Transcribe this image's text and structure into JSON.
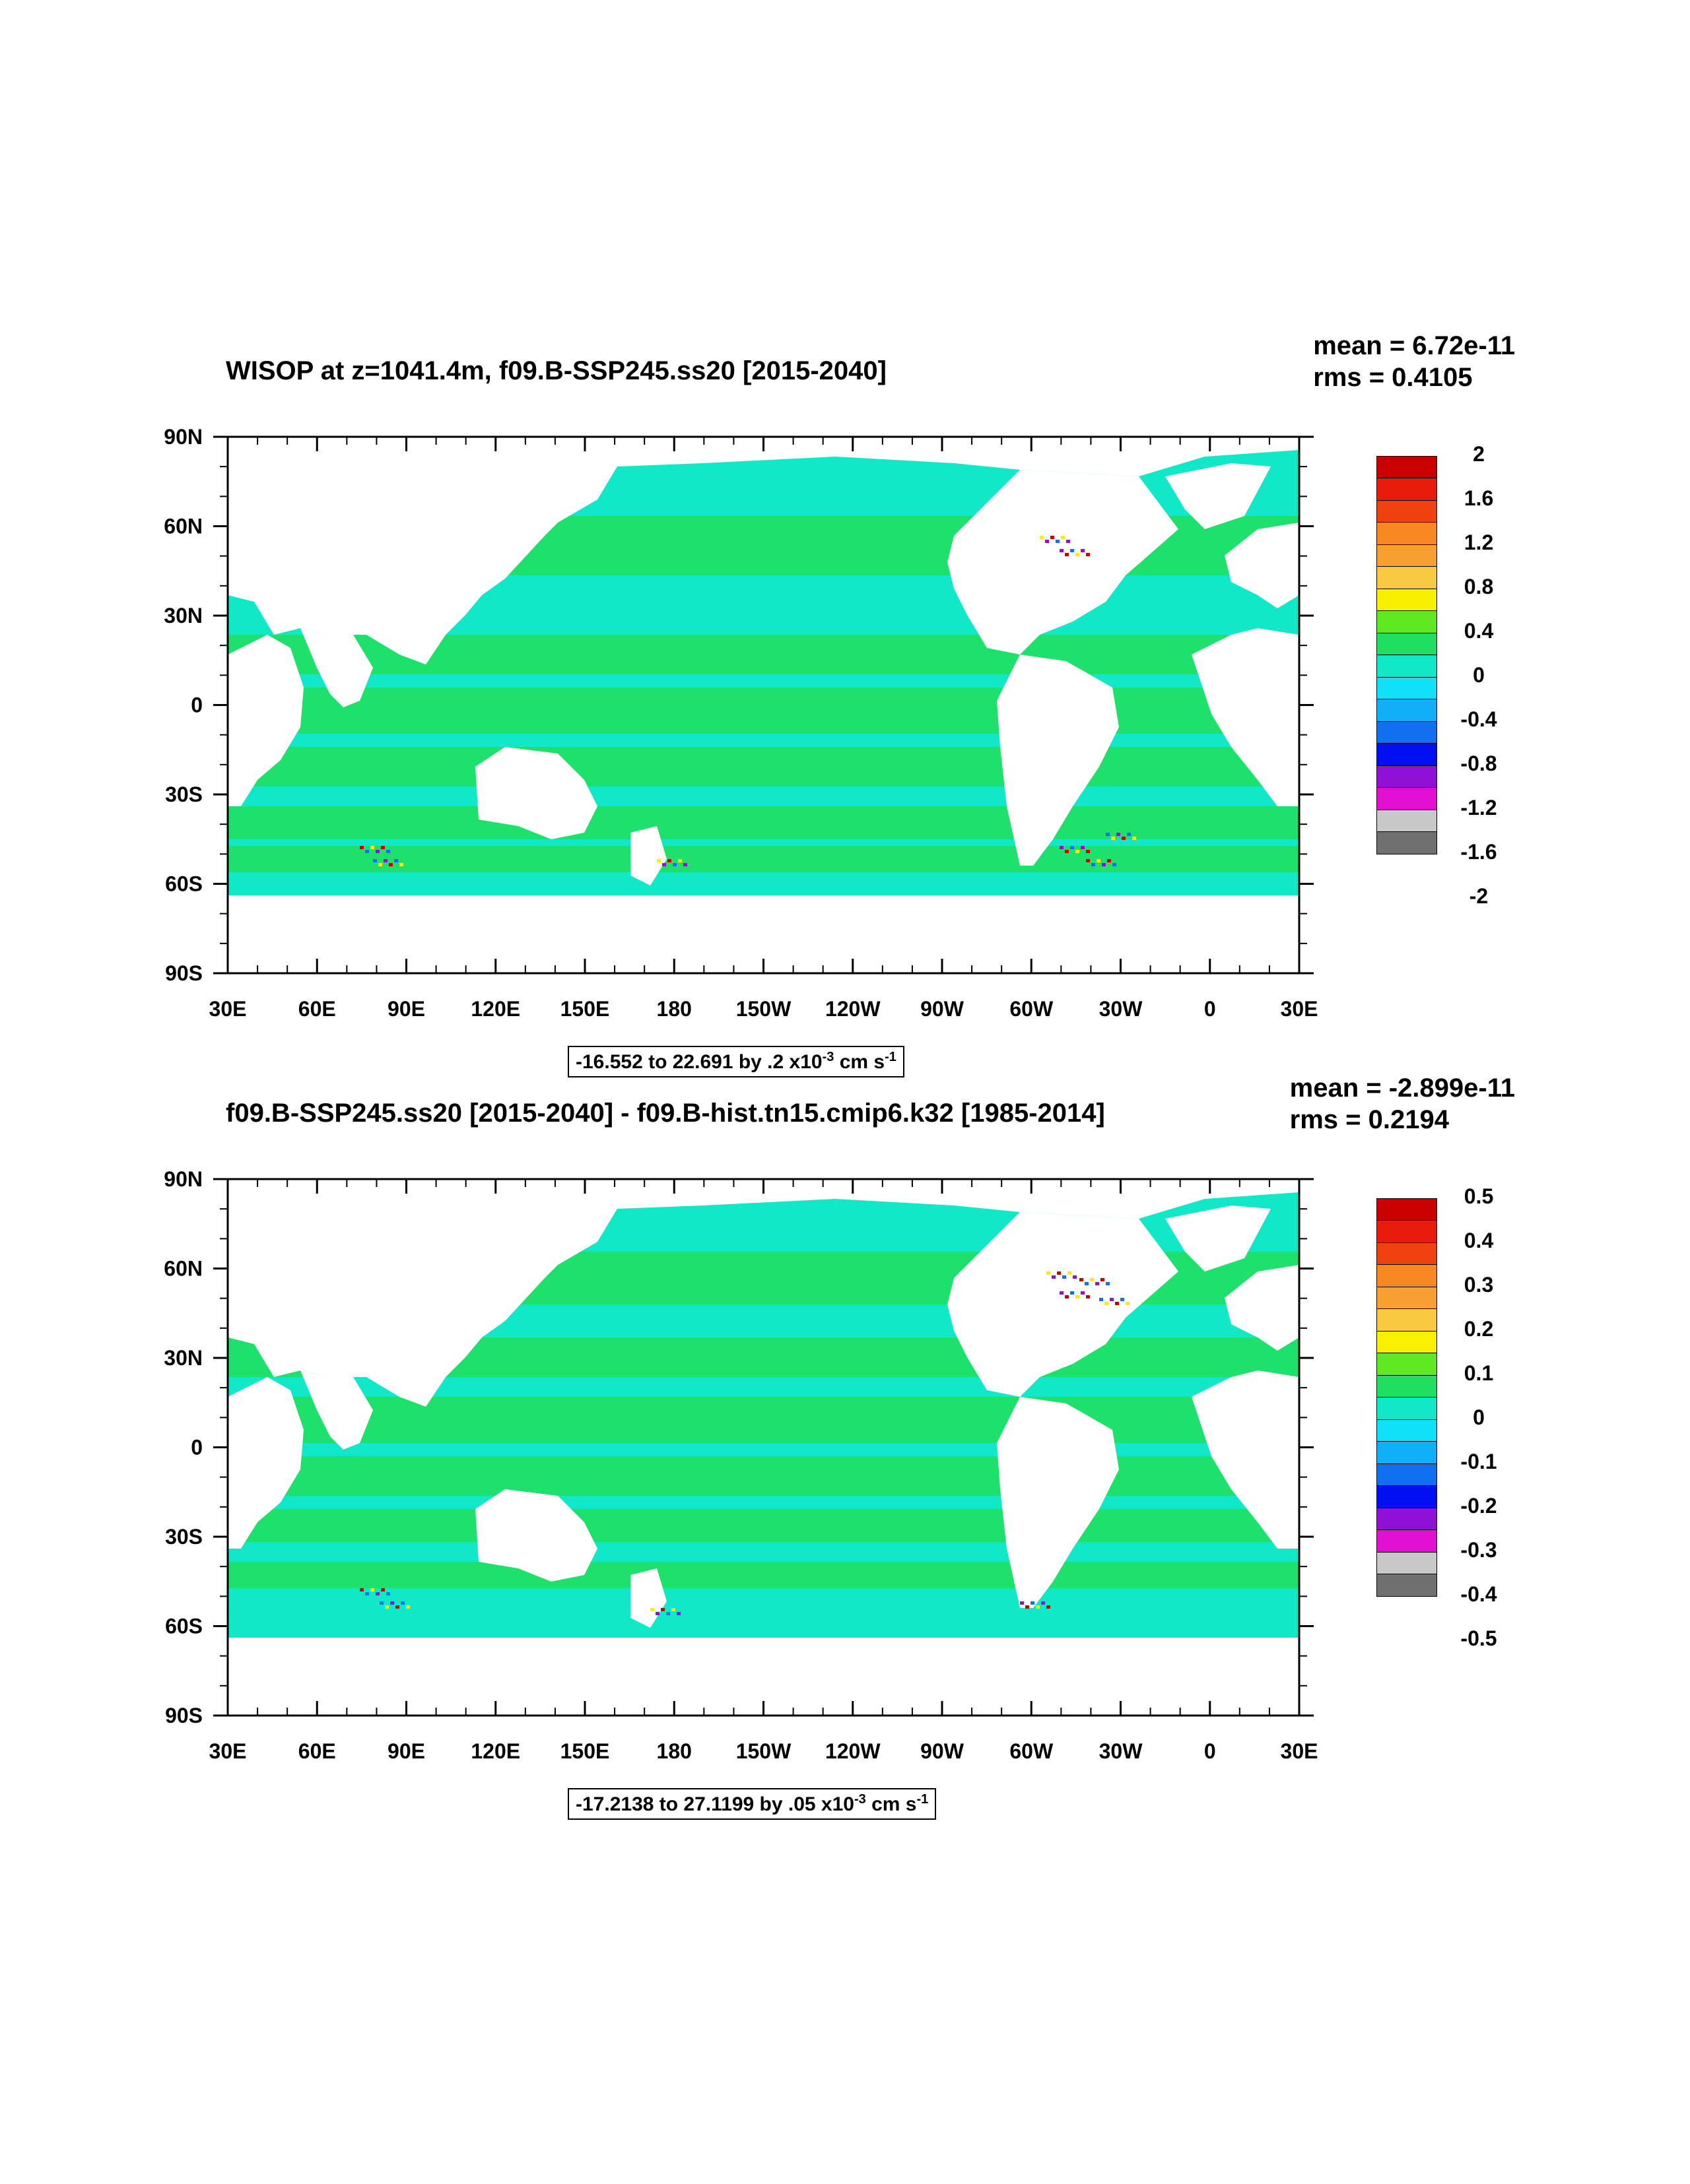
{
  "panels": [
    {
      "id": "panel-1",
      "title": "WISOP at z=1041.4m, f09.B-SSP245.ss20 [2015-2040]",
      "stats": {
        "mean": "mean = 6.72e-11",
        "rms": "rms = 0.4105"
      },
      "range_text": "-16.552 to 22.691 by .2 x10",
      "range_exp": "-3",
      "range_units": " cm s",
      "range_units_exp": "-1",
      "colorbar_labels": [
        "2",
        "1.6",
        "1.2",
        "0.8",
        "0.4",
        "0",
        "-0.4",
        "-0.8",
        "-1.2",
        "-1.6",
        "-2"
      ]
    },
    {
      "id": "panel-2",
      "title": "f09.B-SSP245.ss20 [2015-2040] - f09.B-hist.tn15.cmip6.k32 [1985-2014]",
      "stats": {
        "mean": "mean = -2.899e-11",
        "rms": "rms = 0.2194"
      },
      "range_text": "-17.2138 to 27.1199 by .05 x10",
      "range_exp": "-3",
      "range_units": " cm s",
      "range_units_exp": "-1",
      "colorbar_labels": [
        "0.5",
        "0.4",
        "0.3",
        "0.2",
        "0.1",
        "0",
        "-0.1",
        "-0.2",
        "-0.3",
        "-0.4",
        "-0.5"
      ]
    }
  ],
  "axes": {
    "lat_labels": [
      "90N",
      "60N",
      "30N",
      "0",
      "30S",
      "60S",
      "90S"
    ],
    "lon_labels": [
      "30E",
      "60E",
      "90E",
      "120E",
      "150E",
      "180",
      "150W",
      "120W",
      "90W",
      "60W",
      "30W",
      "0",
      "30E"
    ]
  },
  "colorbar_colors": [
    "#c80000",
    "#e81c0c",
    "#f04010",
    "#f88820",
    "#f8a030",
    "#f8c840",
    "#f8f000",
    "#60e820",
    "#20e060",
    "#10e8c8",
    "#10e0f8",
    "#10b0f8",
    "#1070f0",
    "#0010f0",
    "#9010d8",
    "#e010d0",
    "#c8c8c8",
    "#707070"
  ],
  "map_colors": {
    "ocean_light": "#10e8c8",
    "ocean_green": "#20e060",
    "land": "#ffffff"
  }
}
